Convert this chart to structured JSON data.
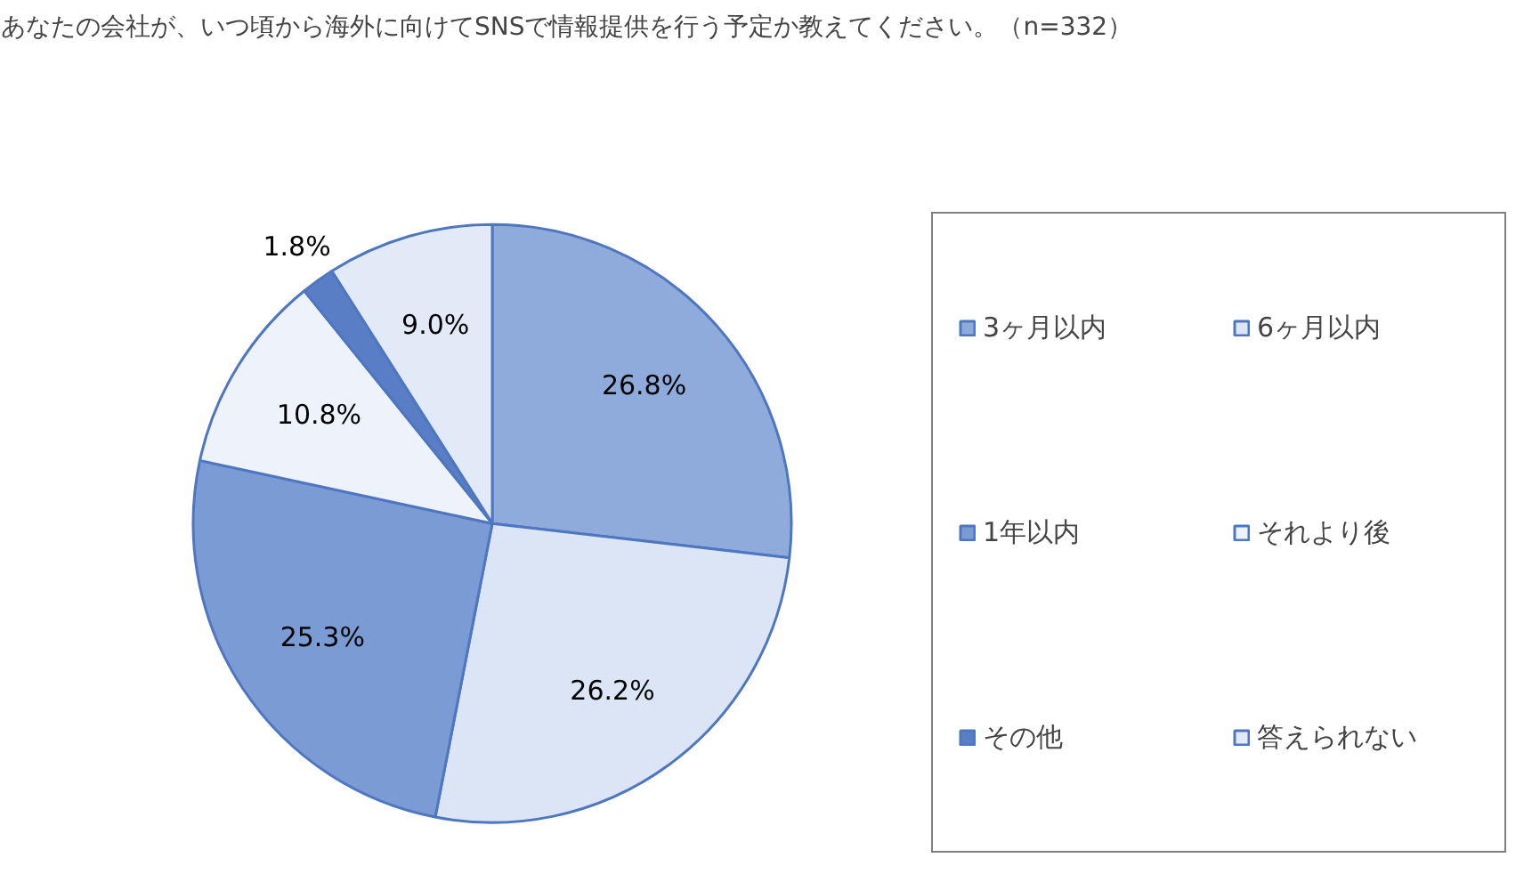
{
  "chart_data": {
    "type": "pie",
    "title": "あなたの会社が、いつ頃から海外に向けてSNSで情報提供を行う予定か教えてください。（n=332）",
    "categories": [
      "3ヶ月以内",
      "6ヶ月以内",
      "1年以内",
      "それより後",
      "その他",
      "答えられない"
    ],
    "values": [
      26.8,
      26.2,
      25.3,
      10.8,
      1.8,
      9.0
    ],
    "colors": [
      "#8fabdc",
      "#dbe5f5",
      "#7b9bd4",
      "#eef3fb",
      "#5a7ec6",
      "#e2eaf7"
    ],
    "value_labels": [
      "26.8%",
      "26.2%",
      "25.3%",
      "10.8%",
      "1.8%",
      "9.0%"
    ],
    "legend": "right"
  }
}
